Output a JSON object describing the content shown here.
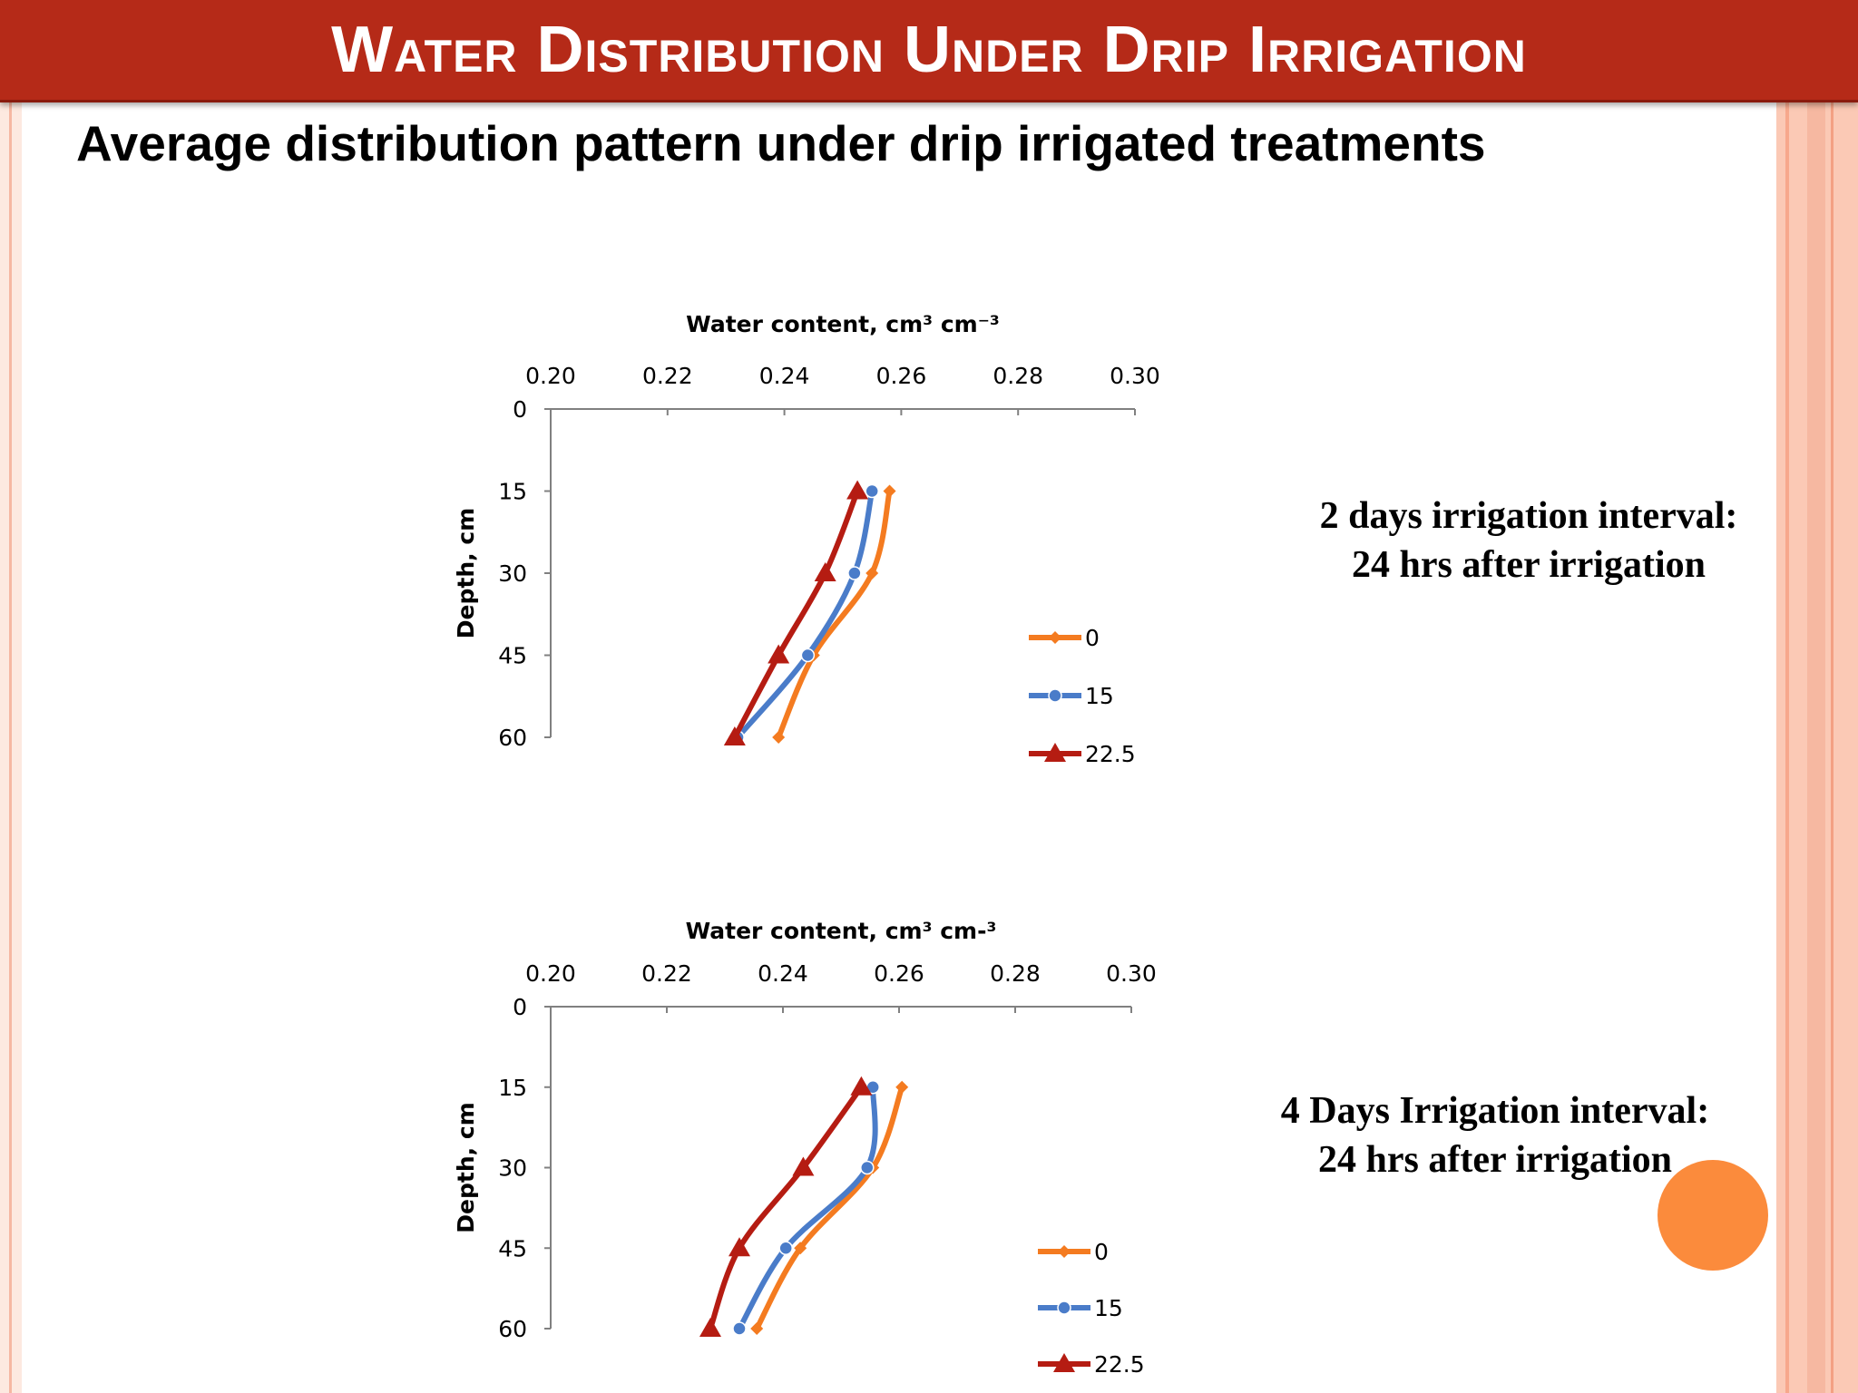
{
  "slide": {
    "title": "Water Distribution Under Drip Irrigation",
    "subtitle": "Average distribution pattern under drip irrigated treatments"
  },
  "captions": [
    {
      "line1": "2 days irrigation interval:",
      "line2": "24 hrs after irrigation"
    },
    {
      "line1": "4 Days Irrigation interval:",
      "line2": "24 hrs after  irrigation"
    }
  ],
  "colors": {
    "title_bar": "#b52a18",
    "series_0": "#f47b20",
    "series_15": "#4a7cc9",
    "series_22_5": "#b51c12",
    "accent_dot": "#fb8b3c"
  },
  "chart_data": [
    {
      "type": "line",
      "xlabel": "Water content, cm³ cm⁻³",
      "ylabel": "Depth, cm",
      "xlim": [
        0.2,
        0.3
      ],
      "ylim": [
        0,
        60
      ],
      "y_inverted": true,
      "x_axis_position": "top",
      "x_ticks": [
        "0.20",
        "0.22",
        "0.24",
        "0.26",
        "0.28",
        "0.30"
      ],
      "y_ticks": [
        "0",
        "15",
        "30",
        "45",
        "60"
      ],
      "legend_position": "right",
      "depths": [
        15,
        30,
        45,
        60
      ],
      "series": [
        {
          "name": "0",
          "marker": "diamond",
          "color": "#f47b20",
          "values": [
            0.258,
            0.255,
            0.245,
            0.239
          ]
        },
        {
          "name": "15",
          "marker": "circle",
          "color": "#4a7cc9",
          "values": [
            0.255,
            0.252,
            0.244,
            0.232
          ]
        },
        {
          "name": "22.5",
          "marker": "triangle",
          "color": "#b51c12",
          "values": [
            0.2525,
            0.247,
            0.239,
            0.2315
          ]
        }
      ]
    },
    {
      "type": "line",
      "xlabel": "Water content, cm³ cm-³",
      "ylabel": "Depth, cm",
      "xlim": [
        0.2,
        0.3
      ],
      "ylim": [
        0,
        60
      ],
      "y_inverted": true,
      "x_axis_position": "top",
      "x_ticks": [
        "0.20",
        "0.22",
        "0.24",
        "0.26",
        "0.28",
        "0.30"
      ],
      "y_ticks": [
        "0",
        "15",
        "30",
        "45",
        "60"
      ],
      "legend_position": "right",
      "depths": [
        15,
        30,
        45,
        60
      ],
      "series": [
        {
          "name": "0",
          "marker": "diamond",
          "color": "#f47b20",
          "values": [
            0.2605,
            0.2555,
            0.243,
            0.2355
          ]
        },
        {
          "name": "15",
          "marker": "circle",
          "color": "#4a7cc9",
          "values": [
            0.2555,
            0.2545,
            0.2405,
            0.2325
          ]
        },
        {
          "name": "22.5",
          "marker": "triangle",
          "color": "#b51c12",
          "values": [
            0.2535,
            0.2435,
            0.2325,
            0.2275
          ]
        }
      ]
    }
  ]
}
